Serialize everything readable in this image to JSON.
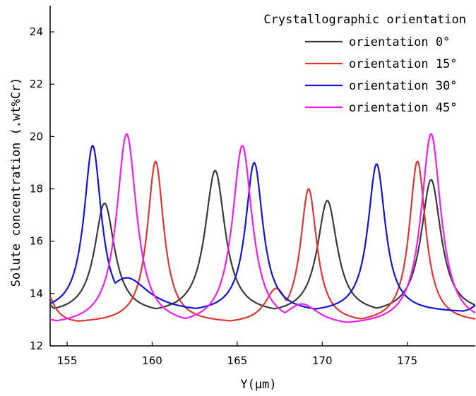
{
  "chart_data": {
    "type": "line",
    "title": "",
    "xlabel": "Y(μm)",
    "ylabel": "Solute concentration (.wt%Cr)",
    "xlim": [
      154,
      179
    ],
    "ylim": [
      12,
      25
    ],
    "x_ticks": [
      155,
      160,
      165,
      170,
      175
    ],
    "y_ticks": [
      12,
      14,
      16,
      18,
      20,
      22,
      24
    ],
    "grid": false,
    "legend": {
      "title": "Crystallographic orientation",
      "placement": "top-right"
    },
    "series": [
      {
        "name": "orientation 0°",
        "color": "#3a3a3a",
        "baseline": 13.2,
        "peaks": [
          {
            "x": 157.2,
            "y": 17.45,
            "w": 1.15
          },
          {
            "x": 163.7,
            "y": 18.7,
            "w": 1.15
          },
          {
            "x": 170.3,
            "y": 17.55,
            "w": 1.15
          },
          {
            "x": 176.4,
            "y": 18.35,
            "w": 1.15
          }
        ],
        "extra": [
          {
            "x": 153.5,
            "y": 14.3,
            "w": 0.6
          }
        ]
      },
      {
        "name": "orientation 15°",
        "color": "#e03535",
        "baseline": 12.85,
        "peaks": [
          {
            "x": 160.2,
            "y": 19.05,
            "w": 0.95
          },
          {
            "x": 169.2,
            "y": 18.0,
            "w": 0.95
          },
          {
            "x": 175.6,
            "y": 19.05,
            "w": 0.95
          }
        ],
        "extra": [
          {
            "x": 153.8,
            "y": 14.0,
            "w": 0.9
          },
          {
            "x": 167.3,
            "y": 14.2,
            "w": 1.3
          }
        ]
      },
      {
        "name": "orientation 30°",
        "color": "#1414d4",
        "baseline": 13.25,
        "peaks": [
          {
            "x": 156.5,
            "y": 19.65,
            "w": 1.0
          },
          {
            "x": 166.0,
            "y": 19.0,
            "w": 1.0
          },
          {
            "x": 173.2,
            "y": 18.95,
            "w": 1.0
          }
        ],
        "extra": [
          {
            "x": 158.5,
            "y": 14.6,
            "w": 2.6
          },
          {
            "x": 179.2,
            "y": 13.6,
            "w": 0.8
          }
        ]
      },
      {
        "name": "orientation 45°",
        "color": "#f01ef0",
        "baseline": 12.75,
        "peaks": [
          {
            "x": 158.5,
            "y": 20.1,
            "w": 1.15
          },
          {
            "x": 165.3,
            "y": 19.65,
            "w": 1.15
          },
          {
            "x": 176.4,
            "y": 20.1,
            "w": 1.15
          }
        ],
        "extra": [
          {
            "x": 154.0,
            "y": 13.0,
            "w": 1.5
          },
          {
            "x": 168.8,
            "y": 13.6,
            "w": 2.0
          }
        ]
      }
    ]
  }
}
